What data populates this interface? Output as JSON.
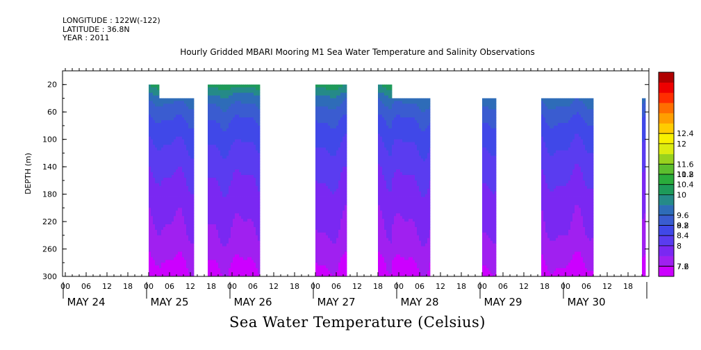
{
  "header": {
    "longitude": "LONGITUDE : 122W(-122)",
    "latitude": "LATITUDE : 36.8N",
    "year": "YEAR : 2011"
  },
  "chart_data": {
    "type": "heatmap",
    "title": "Hourly Gridded MBARI Mooring M1 Sea Water Temperature and Salinity Observations",
    "xlabel": "",
    "ylabel": "DEPTH (m)",
    "caption": "Sea Water Temperature (Celsius)",
    "y_axis": {
      "range": [
        300,
        0
      ],
      "inverted": true,
      "ticks": [
        20,
        60,
        100,
        140,
        180,
        220,
        260,
        300
      ]
    },
    "x_axis": {
      "hour_ticks": [
        "00",
        "06",
        "12",
        "18",
        "00",
        "06",
        "12",
        "18",
        "00",
        "06",
        "12",
        "18",
        "00",
        "06",
        "12",
        "18",
        "00",
        "06",
        "12",
        "18",
        "00",
        "06",
        "12",
        "18",
        "00",
        "06",
        "12",
        "18"
      ],
      "day_labels": [
        "MAY 24",
        "MAY 25",
        "MAY 26",
        "MAY 27",
        "MAY 28",
        "MAY 29",
        "MAY 30"
      ]
    },
    "colorbar": {
      "levels": [
        7.2,
        7.6,
        8,
        8.4,
        8.8,
        9.2,
        9.6,
        10,
        10.4,
        10.8,
        11.2,
        11.6,
        12,
        12.4
      ],
      "colors": [
        "#cc00ff",
        "#a020f0",
        "#7a28f2",
        "#5a3cf0",
        "#4048e8",
        "#3a5cd0",
        "#2e6cb8",
        "#258a88",
        "#1e9a5a",
        "#2aac3c",
        "#5cbe2e",
        "#98d21e",
        "#dcec10",
        "#f8f000",
        "#ffcc00",
        "#ff9e00",
        "#ff6e00",
        "#ff2e00",
        "#ee0000",
        "#b00000"
      ]
    },
    "segments": [
      {
        "start": "MAY 25 00",
        "end": "MAY 25 03",
        "top_depth": 20,
        "bottom_depth": 300
      },
      {
        "start": "MAY 25 03",
        "end": "MAY 25 13",
        "top_depth": 40,
        "bottom_depth": 300
      },
      {
        "start": "MAY 25 17",
        "end": "MAY 26 08",
        "top_depth": 20,
        "bottom_depth": 300
      },
      {
        "start": "MAY 27 00",
        "end": "MAY 27 09",
        "top_depth": 20,
        "bottom_depth": 300
      },
      {
        "start": "MAY 27 18",
        "end": "MAY 27 22",
        "top_depth": 20,
        "bottom_depth": 300
      },
      {
        "start": "MAY 27 22",
        "end": "MAY 28 09",
        "top_depth": 40,
        "bottom_depth": 300
      },
      {
        "start": "MAY 29 00",
        "end": "MAY 29 04",
        "top_depth": 40,
        "bottom_depth": 300
      },
      {
        "start": "MAY 29 17",
        "end": "MAY 30 08",
        "top_depth": 40,
        "bottom_depth": 300
      },
      {
        "start": "MAY 30 22",
        "end": "MAY 30 23",
        "top_depth": 40,
        "bottom_depth": 300
      }
    ],
    "temperature_profile": [
      {
        "depth": 20,
        "value": 10.4
      },
      {
        "depth": 40,
        "value": 9.6
      },
      {
        "depth": 60,
        "value": 9.2
      },
      {
        "depth": 80,
        "value": 8.9
      },
      {
        "depth": 100,
        "value": 8.7
      },
      {
        "depth": 120,
        "value": 8.5
      },
      {
        "depth": 140,
        "value": 8.35
      },
      {
        "depth": 160,
        "value": 8.2
      },
      {
        "depth": 180,
        "value": 8.05
      },
      {
        "depth": 200,
        "value": 7.95
      },
      {
        "depth": 220,
        "value": 7.85
      },
      {
        "depth": 240,
        "value": 7.75
      },
      {
        "depth": 260,
        "value": 7.6
      },
      {
        "depth": 280,
        "value": 7.4
      },
      {
        "depth": 300,
        "value": 7.25
      }
    ]
  }
}
